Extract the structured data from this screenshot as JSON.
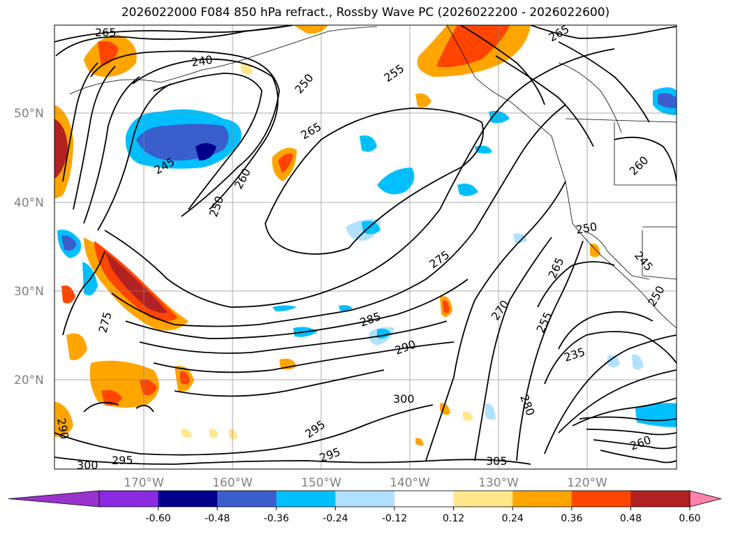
{
  "title": "2026022000 F084 850 hPa refract., Rossby Wave PC (2026022200 - 2026022600)",
  "lat_labels": [
    "50°N",
    "40°N",
    "30°N",
    "20°N"
  ],
  "lon_labels": [
    "170°W",
    "160°W",
    "150°W",
    "140°W",
    "130°W",
    "120°W"
  ],
  "contour_labels": [
    "265",
    "240",
    "250",
    "255",
    "265",
    "245",
    "265",
    "260",
    "250",
    "275",
    "285",
    "290",
    "300",
    "295",
    "295",
    "300",
    "295",
    "305",
    "280",
    "270",
    "255",
    "265",
    "250",
    "235",
    "260",
    "260",
    "245",
    "250",
    "275",
    "290"
  ],
  "colorbar": {
    "colors": [
      "#9932cc",
      "#8a2be2",
      "#00008b",
      "#3a5fcd",
      "#00bfff",
      "#b0e2ff",
      "#ffffff",
      "#ffe78c",
      "#ffa500",
      "#ff4500",
      "#b22222",
      "#ff82ab"
    ],
    "ticks": [
      "-0.60",
      "-0.48",
      "-0.36",
      "-0.24",
      "-0.12",
      "0.12",
      "0.24",
      "0.36",
      "0.48",
      "0.60"
    ]
  }
}
